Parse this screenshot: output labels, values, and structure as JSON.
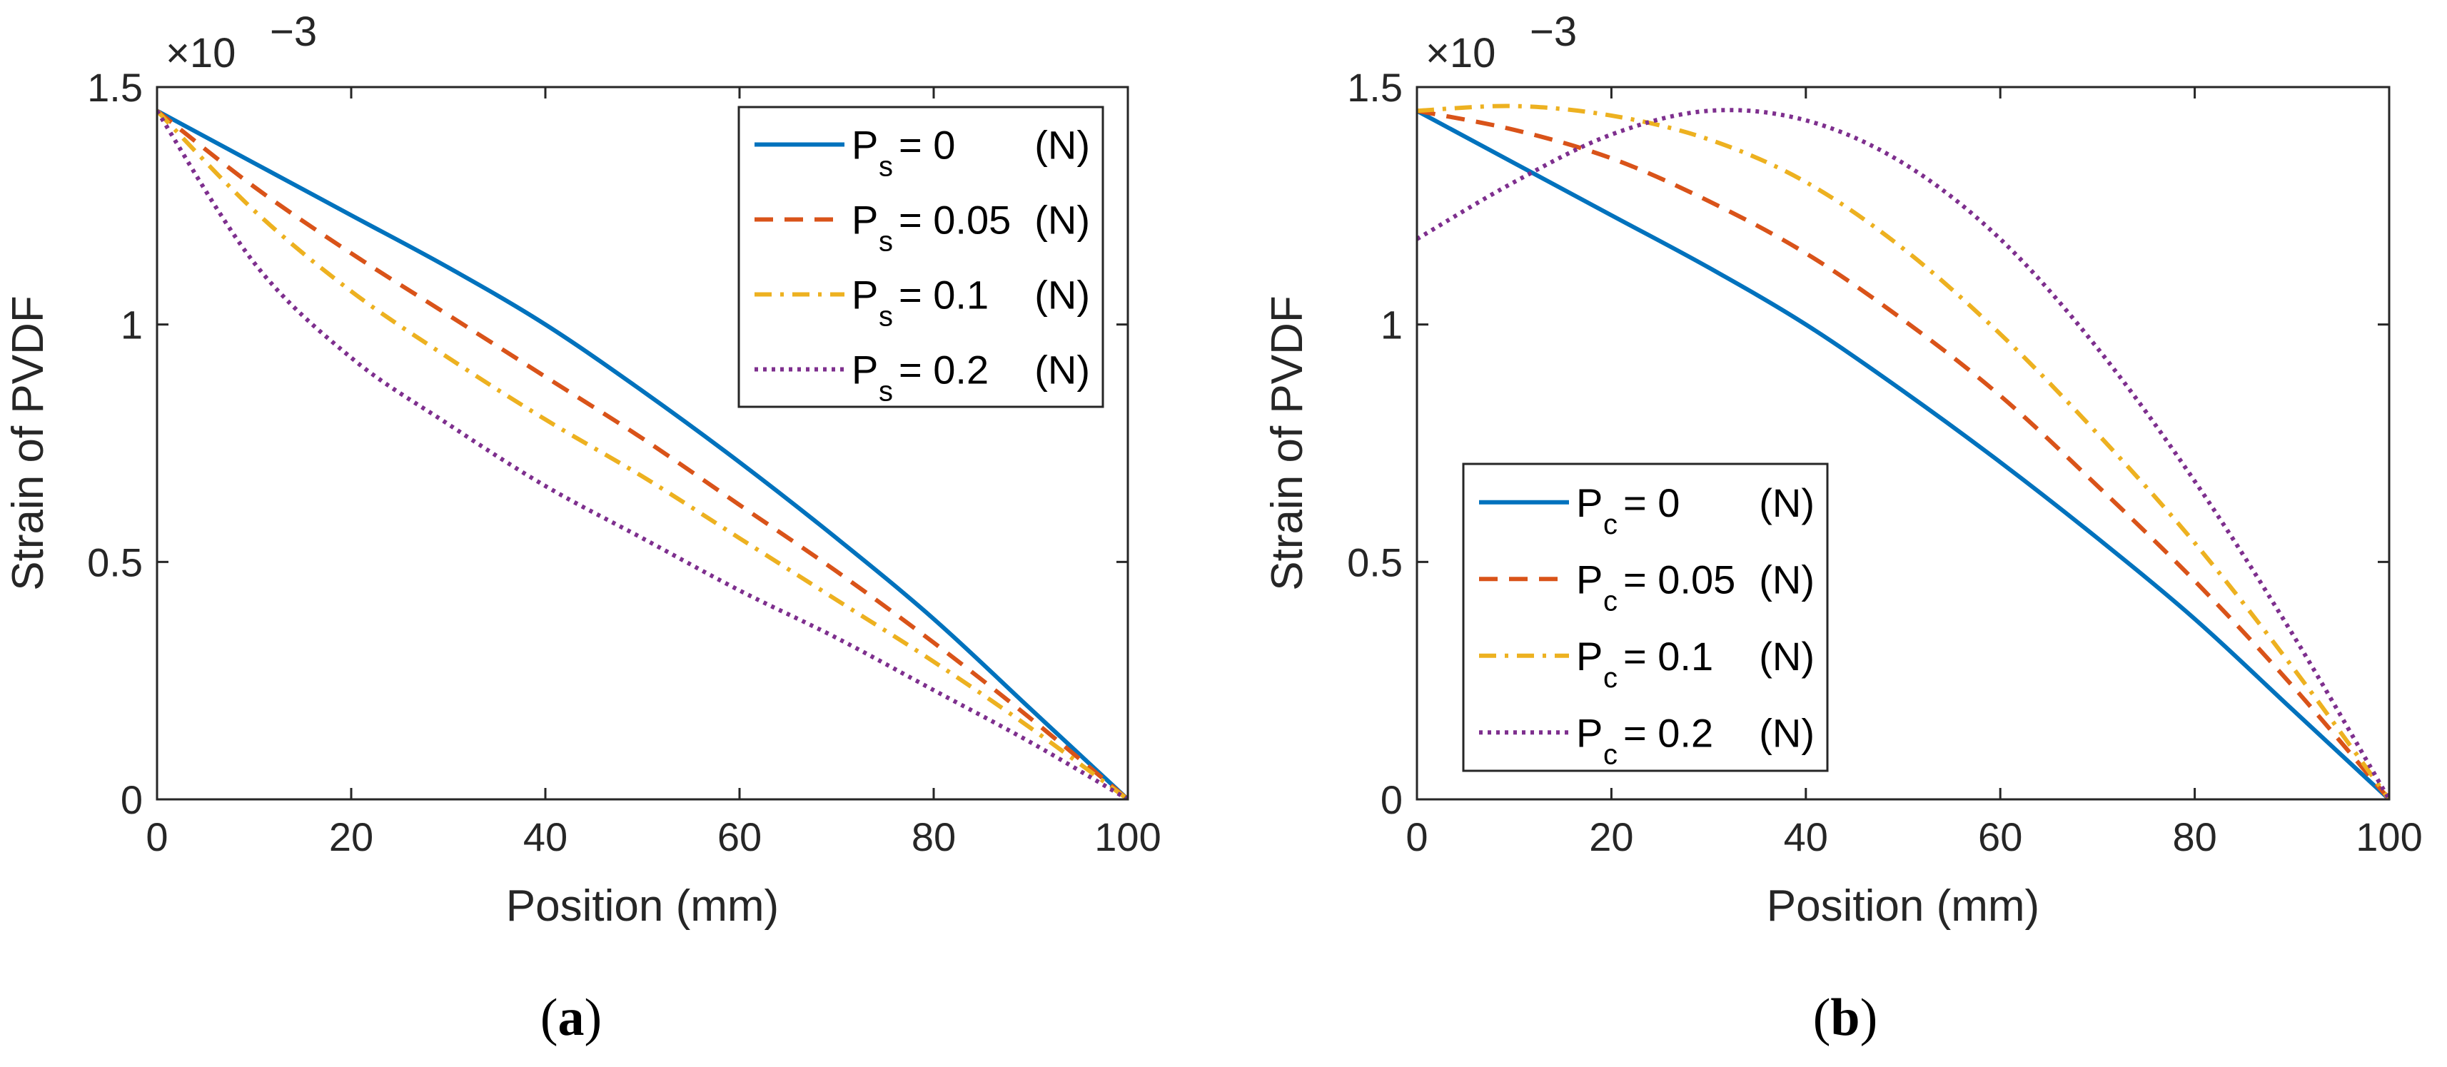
{
  "chart_data": [
    {
      "type": "line",
      "panel_label": "a",
      "xlabel": "Position (mm)",
      "ylabel": "Strain of PVDF",
      "y_exponent_label": "×10",
      "y_exponent_power": "−3",
      "xlim": [
        0,
        100
      ],
      "ylim": [
        0,
        1.5
      ],
      "xticks": [
        0,
        20,
        40,
        60,
        80,
        100
      ],
      "yticks": [
        0,
        0.5,
        1,
        1.5
      ],
      "xtick_labels": [
        "0",
        "20",
        "40",
        "60",
        "80",
        "100"
      ],
      "ytick_labels": [
        "0",
        "0.5",
        "1",
        "1.5"
      ],
      "legend_position": "top-right",
      "x": [
        0,
        10,
        20,
        30,
        40,
        50,
        60,
        70,
        80,
        90,
        100
      ],
      "series": [
        {
          "name": "P_s = 0",
          "legend_main": "P",
          "legend_sub": "s",
          "legend_value": "= 0",
          "legend_unit": "(N)",
          "color": "#0072BD",
          "style": "solid",
          "values": [
            1.45,
            1.34,
            1.23,
            1.12,
            1.0,
            0.86,
            0.71,
            0.55,
            0.38,
            0.19,
            0.0
          ]
        },
        {
          "name": "P_s = 0.05",
          "legend_main": "P",
          "legend_sub": "s",
          "legend_value": "= 0.05",
          "legend_unit": "(N)",
          "color": "#D95319",
          "style": "dashed",
          "values": [
            1.45,
            1.29,
            1.15,
            1.02,
            0.89,
            0.76,
            0.62,
            0.48,
            0.33,
            0.17,
            0.0
          ]
        },
        {
          "name": "P_s = 0.1",
          "legend_main": "P",
          "legend_sub": "s",
          "legend_value": "= 0.1",
          "legend_unit": "(N)",
          "color": "#EDB120",
          "style": "dashdot",
          "values": [
            1.45,
            1.24,
            1.07,
            0.93,
            0.8,
            0.68,
            0.55,
            0.42,
            0.29,
            0.15,
            0.0
          ]
        },
        {
          "name": "P_s = 0.2",
          "legend_main": "P",
          "legend_sub": "s",
          "legend_value": "= 0.2",
          "legend_unit": "(N)",
          "color": "#7E2F8E",
          "style": "dotted",
          "values": [
            1.45,
            1.13,
            0.93,
            0.79,
            0.66,
            0.55,
            0.44,
            0.34,
            0.23,
            0.12,
            0.0
          ]
        }
      ]
    },
    {
      "type": "line",
      "panel_label": "b",
      "xlabel": "Position (mm)",
      "ylabel": "Strain of PVDF",
      "y_exponent_label": "×10",
      "y_exponent_power": "−3",
      "xlim": [
        0,
        100
      ],
      "ylim": [
        0,
        1.5
      ],
      "xticks": [
        0,
        20,
        40,
        60,
        80,
        100
      ],
      "yticks": [
        0,
        0.5,
        1,
        1.5
      ],
      "xtick_labels": [
        "0",
        "20",
        "40",
        "60",
        "80",
        "100"
      ],
      "ytick_labels": [
        "0",
        "0.5",
        "1",
        "1.5"
      ],
      "legend_position": "bottom-left",
      "x": [
        0,
        10,
        20,
        30,
        40,
        50,
        60,
        70,
        80,
        90,
        100
      ],
      "series": [
        {
          "name": "P_c = 0",
          "legend_main": "P",
          "legend_sub": "c",
          "legend_value": "= 0",
          "legend_unit": "(N)",
          "color": "#0072BD",
          "style": "solid",
          "values": [
            1.45,
            1.34,
            1.23,
            1.12,
            1.0,
            0.86,
            0.71,
            0.55,
            0.38,
            0.19,
            0.0
          ]
        },
        {
          "name": "P_c = 0.05",
          "legend_main": "P",
          "legend_sub": "c",
          "legend_value": "= 0.05",
          "legend_unit": "(N)",
          "color": "#D95319",
          "style": "dashed",
          "values": [
            1.45,
            1.41,
            1.35,
            1.26,
            1.15,
            1.01,
            0.85,
            0.66,
            0.46,
            0.24,
            0.0
          ]
        },
        {
          "name": "P_c = 0.1",
          "legend_main": "P",
          "legend_sub": "c",
          "legend_value": "= 0.1",
          "legend_unit": "(N)",
          "color": "#EDB120",
          "style": "dashdot",
          "values": [
            1.45,
            1.46,
            1.44,
            1.39,
            1.3,
            1.16,
            0.98,
            0.77,
            0.54,
            0.28,
            0.0
          ]
        },
        {
          "name": "P_c = 0.2",
          "legend_main": "P",
          "legend_sub": "c",
          "legend_value": "= 0.2",
          "legend_unit": "(N)",
          "color": "#7E2F8E",
          "style": "dotted",
          "values": [
            1.18,
            1.3,
            1.4,
            1.45,
            1.43,
            1.34,
            1.18,
            0.95,
            0.67,
            0.35,
            0.0
          ]
        }
      ]
    }
  ]
}
